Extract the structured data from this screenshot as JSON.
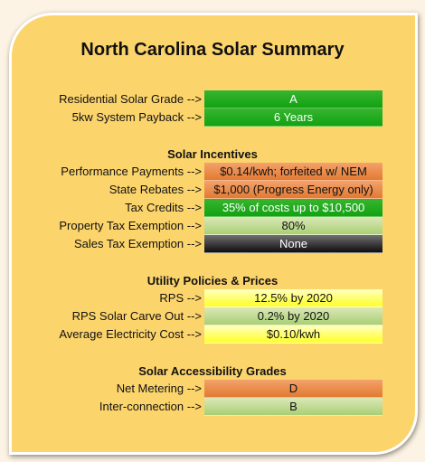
{
  "title": "North Carolina Solar Summary",
  "colors": {
    "card_background": "#fcd46c",
    "page_background": "#fdf3e4",
    "green": "#10a312",
    "orange": "#e27a33",
    "light_green": "#a9cf75",
    "black": "#0e0e0e",
    "yellow": "#ffff27"
  },
  "summary": {
    "grade": {
      "label": "Residential Solar Grade -->",
      "value": "A"
    },
    "payback": {
      "label": "5kw System Payback -->",
      "value": "6 Years"
    }
  },
  "incentives": {
    "heading": "Solar Incentives",
    "performance": {
      "label": "Performance Payments -->",
      "value": "$0.14/kwh; forfeited w/ NEM"
    },
    "rebates": {
      "label": "State Rebates -->",
      "value": "$1,000 (Progress Energy only)"
    },
    "tax_credits": {
      "label": "Tax Credits -->",
      "value": "35% of costs up to $10,500"
    },
    "property_tax": {
      "label": "Property Tax Exemption -->",
      "value": "80%"
    },
    "sales_tax": {
      "label": "Sales Tax Exemption -->",
      "value": "None"
    }
  },
  "utility": {
    "heading": "Utility Policies & Prices",
    "rps": {
      "label": "RPS -->",
      "value": "12.5% by 2020"
    },
    "rps_solar": {
      "label": "RPS Solar Carve Out -->",
      "value": "0.2% by 2020"
    },
    "electricity_cost": {
      "label": "Average Electricity Cost -->",
      "value": "$0.10/kwh"
    }
  },
  "accessibility": {
    "heading": "Solar Accessibility Grades",
    "net_metering": {
      "label": "Net Metering -->",
      "value": "D"
    },
    "interconnection": {
      "label": "Inter-connection -->",
      "value": "B"
    }
  }
}
